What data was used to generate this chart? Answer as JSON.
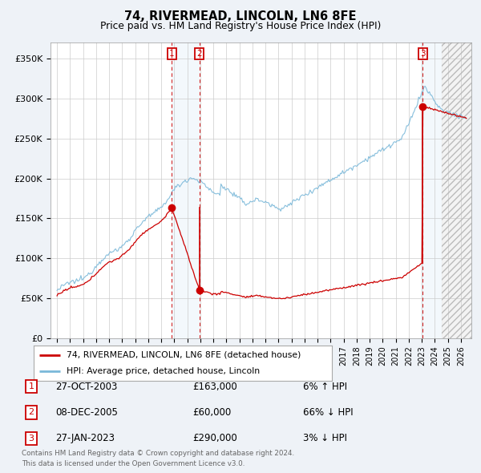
{
  "title1": "74, RIVERMEAD, LINCOLN, LN6 8FE",
  "title2": "Price paid vs. HM Land Registry's House Price Index (HPI)",
  "hpi_color": "#7ab8d9",
  "price_color": "#cc0000",
  "bg_color": "#eef2f7",
  "plot_bg": "#ffffff",
  "ylabel_ticks": [
    "£0",
    "£50K",
    "£100K",
    "£150K",
    "£200K",
    "£250K",
    "£300K",
    "£350K"
  ],
  "ytick_vals": [
    0,
    50000,
    100000,
    150000,
    200000,
    250000,
    300000,
    350000
  ],
  "ylim": [
    0,
    370000
  ],
  "xlim_start": 1994.5,
  "xlim_end": 2026.8,
  "transactions": [
    {
      "num": 1,
      "date": "27-OCT-2003",
      "price": 163000,
      "year": 2003.82,
      "pct": "6%",
      "dir": "↑"
    },
    {
      "num": 2,
      "date": "08-DEC-2005",
      "price": 60000,
      "year": 2005.93,
      "pct": "66%",
      "dir": "↓"
    },
    {
      "num": 3,
      "date": "27-JAN-2023",
      "price": 290000,
      "year": 2023.07,
      "pct": "3%",
      "dir": "↓"
    }
  ],
  "legend_line1": "74, RIVERMEAD, LINCOLN, LN6 8FE (detached house)",
  "legend_line2": "HPI: Average price, detached house, Lincoln",
  "footer": "Contains HM Land Registry data © Crown copyright and database right 2024.\nThis data is licensed under the Open Government Licence v3.0.",
  "future_start": 2024.5,
  "span1_color": "#d0e4f5",
  "span3_color": "#d0e4f5"
}
